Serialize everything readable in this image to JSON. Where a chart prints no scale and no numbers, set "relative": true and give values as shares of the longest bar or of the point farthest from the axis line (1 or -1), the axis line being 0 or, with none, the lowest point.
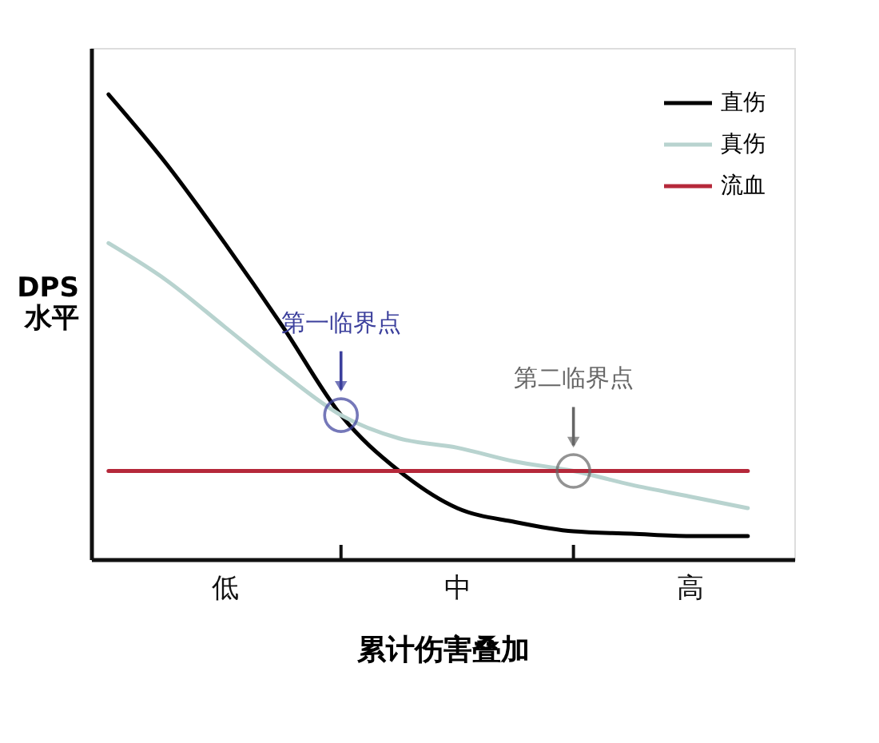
{
  "chart_data": {
    "type": "line",
    "relative": true,
    "xlabel": "累计伤害叠加",
    "ylabel": "DPS 水平",
    "categories": [
      null,
      null,
      "低",
      null,
      null,
      null,
      "中",
      null,
      null,
      null,
      "高",
      null
    ],
    "series": [
      {
        "name": "直伤",
        "color": "#000000",
        "values": [
          1.0,
          0.85,
          0.68,
          0.5,
          0.31,
          0.19,
          0.11,
          0.08,
          0.06,
          0.055,
          0.05,
          0.05
        ]
      },
      {
        "name": "真伤",
        "color": "#b8d3cf",
        "values": [
          0.68,
          0.6,
          0.5,
          0.4,
          0.31,
          0.26,
          0.24,
          0.21,
          0.19,
          0.16,
          0.135,
          0.11
        ]
      },
      {
        "name": "流血",
        "color": "#b5283a",
        "values": [
          0.19,
          0.19,
          0.19,
          0.19,
          0.19,
          0.19,
          0.19,
          0.19,
          0.19,
          0.19,
          0.19,
          0.19
        ]
      }
    ],
    "annotations": [
      "第一临界点",
      "第二临界点"
    ],
    "legend": "top right",
    "grid": false,
    "marker": "none",
    "line_style": "solid"
  }
}
